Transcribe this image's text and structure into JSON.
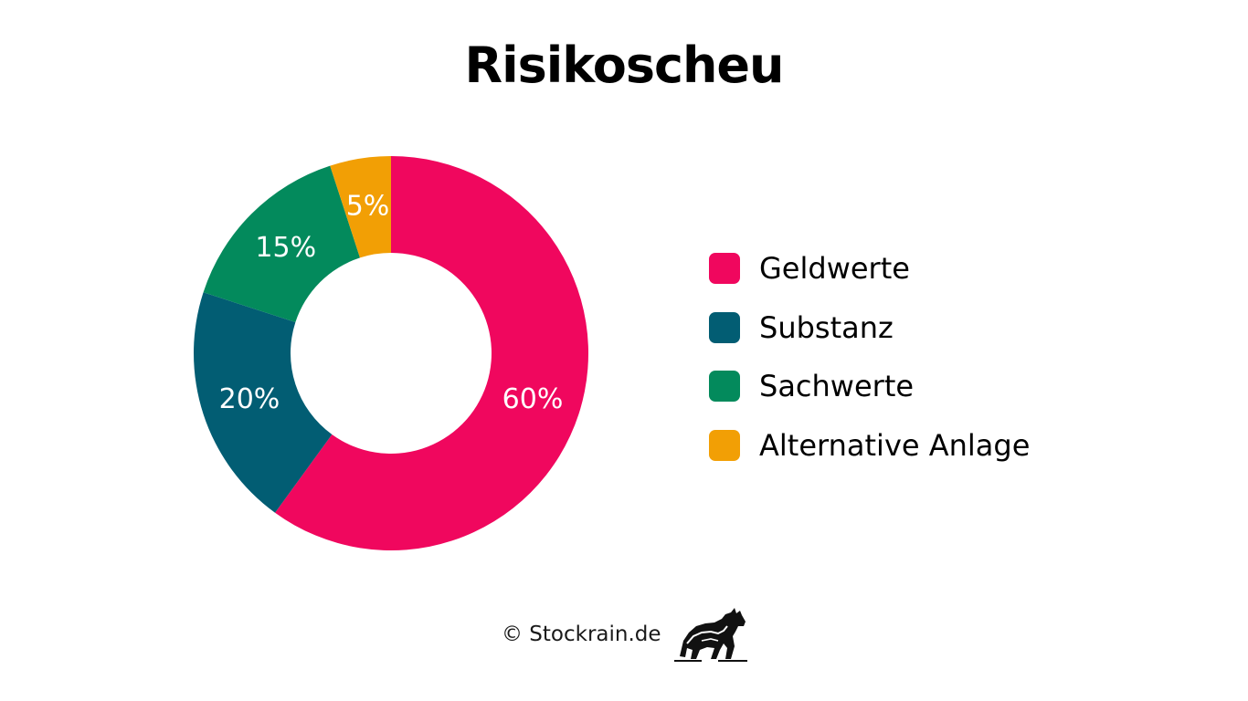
{
  "chart_data": {
    "type": "pie",
    "title": "Risikoscheu",
    "categories": [
      "Geldwerte",
      "Substanz",
      "Sachwerte",
      "Alternative Anlage"
    ],
    "values": [
      60,
      20,
      15,
      5
    ],
    "value_labels": [
      "60%",
      "20%",
      "15%",
      "5%"
    ],
    "colors": [
      "#F0075E",
      "#025D73",
      "#038A5C",
      "#F29F05"
    ],
    "legend_placement": "right",
    "style": "donut"
  },
  "footer": {
    "copyright": "© Stockrain.de",
    "logo_icon": "bull-icon"
  }
}
